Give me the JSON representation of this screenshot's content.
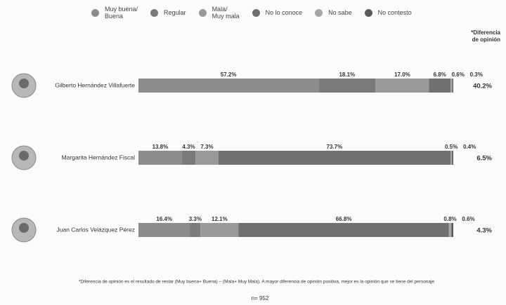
{
  "chart_data": {
    "type": "stacked-bar-h",
    "categories": [
      "Gilberto Hernández Villafuerte",
      "Margarita Hernández Fiscal",
      "Juan Carlos Velázquez Pérez"
    ],
    "series": [
      {
        "name": "Muy buena/\nBuena",
        "color": "#8c8c8c",
        "values": [
          57.2,
          13.8,
          16.4
        ],
        "value_labels": [
          "57.2%",
          "13.8%",
          "16.4%"
        ]
      },
      {
        "name": "Regular",
        "color": "#7a7a7a",
        "values": [
          18.1,
          4.3,
          3.3
        ],
        "value_labels": [
          "18.1%",
          "4.3%",
          "3.3%"
        ]
      },
      {
        "name": "Mala/\nMuy mala",
        "color": "#9a9a9a",
        "values": [
          17.0,
          7.3,
          12.1
        ],
        "value_labels": [
          "17.0%",
          "7.3%",
          "12.1%"
        ]
      },
      {
        "name": "No lo conoce",
        "color": "#707070",
        "values": [
          6.8,
          73.7,
          66.8
        ],
        "value_labels": [
          "6.8%",
          "73.7%",
          "66.8%"
        ]
      },
      {
        "name": "No sabe",
        "color": "#a5a5a5",
        "values": [
          0.6,
          0.5,
          0.8
        ],
        "value_labels": [
          "0.6%",
          "0.5%",
          "0.8%"
        ]
      },
      {
        "name": "No contesto",
        "color": "#5a5a5a",
        "values": [
          0.3,
          0.4,
          0.6
        ],
        "value_labels": [
          "0.3%",
          "0.4%",
          "0.6%"
        ]
      }
    ],
    "xlim": [
      0,
      100
    ],
    "legend": "top",
    "difference_title": "*Diferencia\nde opinión",
    "difference_labels": [
      "40.2%",
      "6.5%",
      "4.3%"
    ],
    "footnote": "*Diferencia de opinión es el resultado de restar (Muy buena+ Buena) – (Mala+ Muy Mala). A mayor diferencia de opinión positiva, mejor es la opinión que se tiene del personaje",
    "sample_size": "n= 952"
  }
}
